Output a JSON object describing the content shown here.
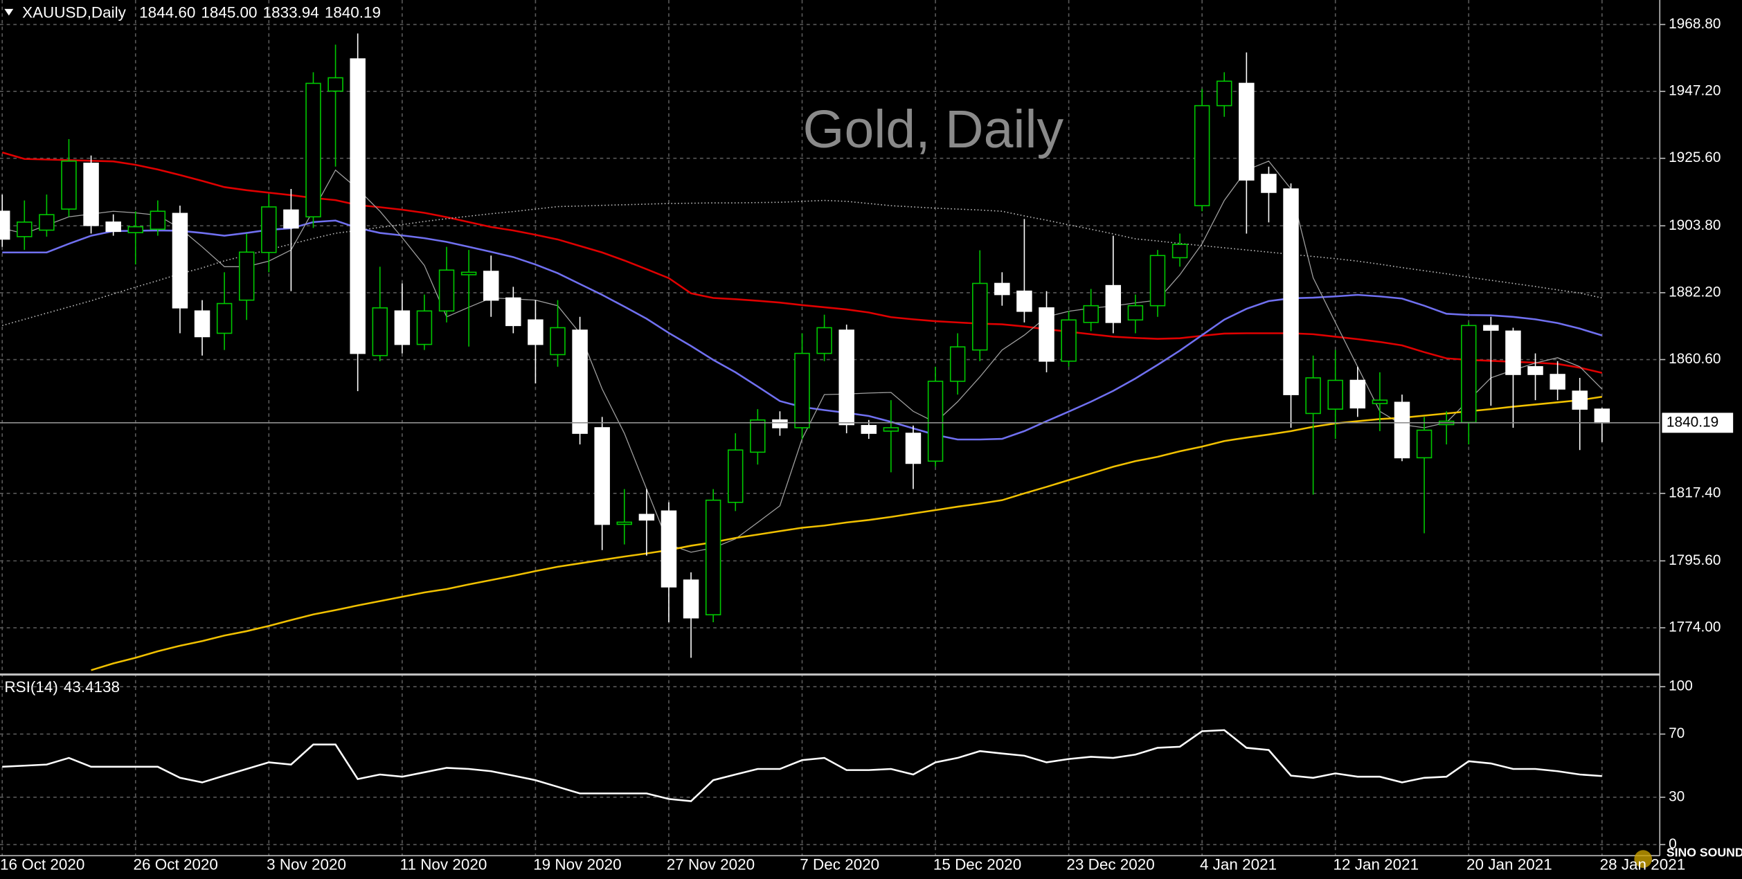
{
  "chart_data": [
    {
      "type": "candlestick",
      "title": "Gold, Daily",
      "header": {
        "symbol": "XAUUSD,Daily",
        "values": [
          1844.6,
          1845.0,
          1833.94,
          1840.19
        ],
        "value_labels": [
          "1844.60",
          "1845.00",
          "1833.94",
          "1840.19"
        ]
      },
      "categories": [
        "16 Oct 2020",
        null,
        null,
        null,
        null,
        null,
        "26 Oct 2020",
        null,
        null,
        null,
        null,
        null,
        "3 Nov 2020",
        null,
        null,
        null,
        null,
        null,
        "11 Nov 2020",
        null,
        null,
        null,
        null,
        null,
        "19 Nov 2020",
        null,
        null,
        null,
        null,
        null,
        "27 Nov 2020",
        null,
        null,
        null,
        null,
        null,
        "7 Dec 2020",
        null,
        null,
        null,
        null,
        null,
        "15 Dec 2020",
        null,
        null,
        null,
        null,
        null,
        "23 Dec 2020",
        null,
        null,
        null,
        null,
        null,
        "4 Jan 2021",
        null,
        null,
        null,
        null,
        null,
        "12 Jan 2021",
        null,
        null,
        null,
        null,
        null,
        "20 Jan 2021",
        null,
        null,
        null,
        null,
        null,
        "28 Jan 2021"
      ],
      "open": [
        1908.5,
        1900.3,
        1902.4,
        1909.2,
        1924.0,
        1905.0,
        1901.6,
        1902.7,
        1907.8,
        1876.3,
        1869.1,
        1879.8,
        1895.2,
        1908.9,
        1906.7,
        1947.3,
        1957.7,
        1861.9,
        1876.3,
        1865.5,
        1876.3,
        1888.0,
        1889.1,
        1880.5,
        1873.4,
        1862.2,
        1870.1,
        1838.6,
        1807.4,
        1810.6,
        1811.7,
        1789.4,
        1778.2,
        1814.5,
        1830.7,
        1841.1,
        1838.6,
        1862.6,
        1870.1,
        1839.3,
        1837.5,
        1836.8,
        1827.8,
        1853.6,
        1863.7,
        1885.2,
        1882.7,
        1877.3,
        1860.1,
        1872.6,
        1884.5,
        1873.4,
        1878.0,
        1893.5,
        1910.3,
        1942.6,
        1949.8,
        1920.4,
        1915.7,
        1843.2,
        1844.6,
        1853.9,
        1846.4,
        1846.8,
        1828.9,
        1839.6,
        1840.3,
        1871.6,
        1869.8,
        1858.3,
        1855.8,
        1850.4,
        1844.6
      ],
      "high": [
        1913.9,
        1912.0,
        1913.9,
        1931.8,
        1926.5,
        1907.5,
        1908.5,
        1912.0,
        1910.3,
        1879.8,
        1888.8,
        1901.3,
        1913.9,
        1915.7,
        1953.4,
        1962.3,
        1965.9,
        1890.6,
        1885.2,
        1881.6,
        1897.0,
        1896.0,
        1894.2,
        1884.1,
        1879.8,
        1879.8,
        1874.4,
        1842.1,
        1818.8,
        1818.8,
        1814.5,
        1791.9,
        1818.8,
        1836.8,
        1844.6,
        1843.9,
        1869.1,
        1875.1,
        1871.9,
        1841.1,
        1847.5,
        1839.3,
        1858.3,
        1869.1,
        1895.9,
        1888.8,
        1906.0,
        1882.7,
        1876.3,
        1883.4,
        1900.6,
        1881.6,
        1896.0,
        1901.3,
        1948.0,
        1953.4,
        1959.8,
        1922.9,
        1917.5,
        1861.9,
        1863.7,
        1858.3,
        1856.5,
        1849.3,
        1842.1,
        1843.9,
        1872.6,
        1874.4,
        1870.9,
        1862.6,
        1860.1,
        1854.7,
        1845.0
      ],
      "low": [
        1897.0,
        1896.0,
        1900.3,
        1906.7,
        1901.3,
        1900.6,
        1891.3,
        1900.6,
        1869.1,
        1861.9,
        1863.7,
        1873.4,
        1888.8,
        1882.7,
        1903.1,
        1922.9,
        1850.4,
        1860.1,
        1862.6,
        1863.7,
        1872.6,
        1864.8,
        1874.4,
        1869.1,
        1852.9,
        1858.3,
        1833.2,
        1799.1,
        1800.9,
        1797.3,
        1775.8,
        1764.3,
        1775.8,
        1811.7,
        1826.7,
        1836.0,
        1834.9,
        1860.1,
        1836.8,
        1835.0,
        1824.2,
        1818.8,
        1826.0,
        1849.3,
        1860.1,
        1878.0,
        1872.6,
        1856.5,
        1858.3,
        1869.8,
        1869.1,
        1869.1,
        1874.4,
        1890.6,
        1908.5,
        1939.0,
        1901.3,
        1904.9,
        1838.6,
        1817.0,
        1835.0,
        1842.1,
        1837.5,
        1827.8,
        1804.5,
        1833.2,
        1833.2,
        1845.7,
        1838.6,
        1847.5,
        1847.5,
        1831.4,
        1833.94
      ],
      "close": [
        1899.5,
        1905.0,
        1907.4,
        1924.7,
        1903.9,
        1902.0,
        1903.5,
        1908.5,
        1877.3,
        1868.0,
        1878.7,
        1895.3,
        1909.9,
        1903.1,
        1949.8,
        1951.6,
        1862.6,
        1877.3,
        1865.5,
        1876.3,
        1889.5,
        1888.8,
        1879.8,
        1871.6,
        1865.5,
        1870.9,
        1836.8,
        1807.4,
        1808.1,
        1808.8,
        1787.2,
        1777.2,
        1815.2,
        1831.4,
        1841.1,
        1838.6,
        1862.6,
        1870.9,
        1839.6,
        1836.8,
        1838.6,
        1827.1,
        1853.6,
        1864.7,
        1885.2,
        1881.6,
        1876.2,
        1860.1,
        1873.4,
        1878.0,
        1872.6,
        1878.0,
        1894.2,
        1897.8,
        1942.6,
        1950.5,
        1918.6,
        1914.6,
        1849.3,
        1854.7,
        1853.9,
        1845.0,
        1847.5,
        1828.9,
        1837.8,
        1840.7,
        1871.6,
        1870.1,
        1855.8,
        1855.8,
        1851.1,
        1844.6,
        1840.19
      ],
      "up_color": "#00c800",
      "down_color": "#ffffff",
      "series": [
        {
          "color": "#e00000",
          "style": "solid",
          "values": [
            1927.5,
            1925.4,
            1925.2,
            1925.0,
            1924.8,
            1924.6,
            1923.5,
            1922.0,
            1920.2,
            1918.3,
            1916.3,
            1915.3,
            1914.5,
            1913.7,
            1912.8,
            1912.1,
            1910.5,
            1909.8,
            1909.0,
            1908.0,
            1906.6,
            1905.0,
            1903.4,
            1902.3,
            1900.9,
            1899.4,
            1897.3,
            1895.2,
            1892.6,
            1889.8,
            1886.9,
            1882.0,
            1880.5,
            1880.1,
            1879.6,
            1879.0,
            1878.2,
            1877.5,
            1876.8,
            1875.8,
            1874.3,
            1873.6,
            1873.0,
            1872.6,
            1872.2,
            1872.0,
            1871.3,
            1870.4,
            1869.6,
            1868.8,
            1868.0,
            1867.6,
            1867.3,
            1867.5,
            1868.3,
            1869.0,
            1869.1,
            1869.1,
            1869.1,
            1868.8,
            1868.0,
            1867.2,
            1866.3,
            1865.2,
            1863.0,
            1861.0,
            1860.5,
            1860.2,
            1859.9,
            1859.6,
            1859.2,
            1858.0,
            1856.3
          ]
        },
        {
          "color": "#7070f0",
          "style": "solid",
          "values": [
            1895.2,
            1895.2,
            1895.2,
            1898.0,
            1900.6,
            1902.1,
            1902.2,
            1902.3,
            1902.2,
            1901.5,
            1900.6,
            1901.5,
            1902.5,
            1903.0,
            1905.0,
            1905.5,
            1903.1,
            1901.5,
            1900.7,
            1899.8,
            1898.6,
            1897.0,
            1895.4,
            1893.7,
            1891.3,
            1888.5,
            1885.0,
            1881.5,
            1877.7,
            1873.8,
            1869.2,
            1865.0,
            1860.5,
            1856.5,
            1851.9,
            1847.2,
            1845.3,
            1844.3,
            1843.4,
            1842.4,
            1840.5,
            1838.4,
            1836.3,
            1834.8,
            1834.8,
            1835.0,
            1837.5,
            1840.7,
            1843.8,
            1847.0,
            1850.5,
            1854.5,
            1858.9,
            1863.5,
            1868.5,
            1873.5,
            1877.0,
            1879.5,
            1880.4,
            1880.6,
            1881.0,
            1881.5,
            1881.0,
            1880.3,
            1878.0,
            1875.4,
            1875.0,
            1874.9,
            1874.4,
            1873.6,
            1872.4,
            1870.6,
            1868.4
          ]
        },
        {
          "color": "#a0a0a0",
          "style": "thin",
          "values": [
            1903.0,
            1901.3,
            1904.0,
            1906.7,
            1907.6,
            1908.5,
            1908.0,
            1907.2,
            1903.0,
            1897.0,
            1890.6,
            1890.6,
            1892.4,
            1896.0,
            1908.8,
            1921.8,
            1915.7,
            1908.5,
            1900.0,
            1891.0,
            1874.4,
            1877.5,
            1880.5,
            1880.2,
            1879.8,
            1878.0,
            1869.1,
            1851.1,
            1836.8,
            1818.8,
            1800.9,
            1798.4,
            1799.8,
            1802.7,
            1808.0,
            1813.4,
            1835.0,
            1849.3,
            1849.5,
            1849.8,
            1850.0,
            1843.9,
            1840.3,
            1847.0,
            1855.0,
            1863.7,
            1868.5,
            1874.4,
            1876.2,
            1877.2,
            1877.9,
            1878.9,
            1879.8,
            1888.0,
            1898.0,
            1912.0,
            1921.8,
            1924.7,
            1915.7,
            1887.0,
            1872.6,
            1858.3,
            1843.9,
            1839.6,
            1838.6,
            1840.3,
            1847.5,
            1854.7,
            1857.2,
            1859.5,
            1861.2,
            1858.3,
            1851.1
          ]
        },
        {
          "color": "#f0c000",
          "style": "solid",
          "values": [
            null,
            null,
            null,
            null,
            1760.3,
            1762.5,
            1764.3,
            1766.4,
            1768.2,
            1769.7,
            1771.5,
            1772.9,
            1774.6,
            1776.5,
            1778.3,
            1779.7,
            1781.2,
            1782.6,
            1784.0,
            1785.4,
            1786.5,
            1788.0,
            1789.4,
            1790.8,
            1792.3,
            1793.7,
            1794.8,
            1795.9,
            1797.0,
            1798.0,
            1799.1,
            1800.5,
            1801.6,
            1803.0,
            1804.1,
            1805.2,
            1806.3,
            1807.0,
            1808.0,
            1808.8,
            1809.8,
            1810.9,
            1812.0,
            1813.1,
            1814.1,
            1815.2,
            1817.4,
            1819.5,
            1821.7,
            1823.8,
            1826.0,
            1827.8,
            1829.2,
            1831.0,
            1832.5,
            1834.3,
            1835.4,
            1836.4,
            1837.5,
            1838.9,
            1840.0,
            1840.7,
            1841.4,
            1841.8,
            1842.5,
            1843.2,
            1843.9,
            1844.6,
            1845.4,
            1846.1,
            1846.8,
            1847.5,
            1848.6
          ]
        },
        {
          "color": "#bbbbbb",
          "style": "dotted",
          "values": [
            1871.6,
            1873.6,
            1875.6,
            1877.6,
            1879.6,
            1881.8,
            1884.0,
            1886.1,
            1888.3,
            1890.2,
            1892.5,
            1894.3,
            1896.1,
            1897.9,
            1899.7,
            1901.4,
            1902.3,
            1903.3,
            1904.2,
            1905.2,
            1906.1,
            1906.9,
            1907.7,
            1908.4,
            1909.2,
            1910.0,
            1910.2,
            1910.4,
            1910.6,
            1910.8,
            1911.0,
            1911.1,
            1911.2,
            1911.2,
            1911.3,
            1911.4,
            1911.7,
            1912.0,
            1911.7,
            1911.0,
            1910.3,
            1909.9,
            1909.5,
            1909.2,
            1908.9,
            1908.5,
            1907.0,
            1905.6,
            1904.1,
            1902.7,
            1901.2,
            1899.6,
            1898.9,
            1898.1,
            1897.4,
            1896.7,
            1896.0,
            1895.3,
            1894.6,
            1893.9,
            1893.2,
            1892.4,
            1891.4,
            1890.3,
            1889.3,
            1888.3,
            1887.2,
            1886.2,
            1885.2,
            1884.2,
            1883.1,
            1882.1,
            1880.5
          ]
        }
      ],
      "last_price": 1840.19,
      "ylim": [
        1758.9,
        1976.0
      ],
      "yticks": [
        {
          "value": 1968.8,
          "label": "1968.80"
        },
        {
          "value": 1947.2,
          "label": "1947.20"
        },
        {
          "value": 1925.6,
          "label": "1925.60"
        },
        {
          "value": 1903.8,
          "label": "1903.80"
        },
        {
          "value": 1882.2,
          "label": "1882.20"
        },
        {
          "value": 1860.6,
          "label": "1860.60"
        },
        {
          "value": 1817.4,
          "label": "1817.40"
        },
        {
          "value": 1795.6,
          "label": "1795.60"
        },
        {
          "value": 1774.0,
          "label": "1774.00"
        }
      ],
      "grid": true
    },
    {
      "type": "line",
      "title": "RSI(14)",
      "last_value": 43.4138,
      "color": "#ffffff",
      "values": [
        49.3,
        50.0,
        50.7,
        54.9,
        49.3,
        49.3,
        49.3,
        49.3,
        42.3,
        39.4,
        43.7,
        47.9,
        52.1,
        50.7,
        63.4,
        63.4,
        41.5,
        44.4,
        43.0,
        45.8,
        48.6,
        47.9,
        46.5,
        43.7,
        40.8,
        36.6,
        32.4,
        32.4,
        32.4,
        32.4,
        28.9,
        27.5,
        40.8,
        44.4,
        47.9,
        47.9,
        53.5,
        54.9,
        47.2,
        47.2,
        47.9,
        44.4,
        52.1,
        54.9,
        59.2,
        57.7,
        56.3,
        52.1,
        54.2,
        55.6,
        54.9,
        57.0,
        61.3,
        62.0,
        71.8,
        72.5,
        61.3,
        59.9,
        43.7,
        42.3,
        45.1,
        43.0,
        43.0,
        39.4,
        42.3,
        43.0,
        52.8,
        51.4,
        47.9,
        47.9,
        46.5,
        44.4,
        43.4138
      ],
      "ylim": [
        -7,
        107
      ],
      "yticks": [
        100,
        70,
        30,
        0
      ],
      "grid": true
    }
  ],
  "logo": "SINO SOUND"
}
